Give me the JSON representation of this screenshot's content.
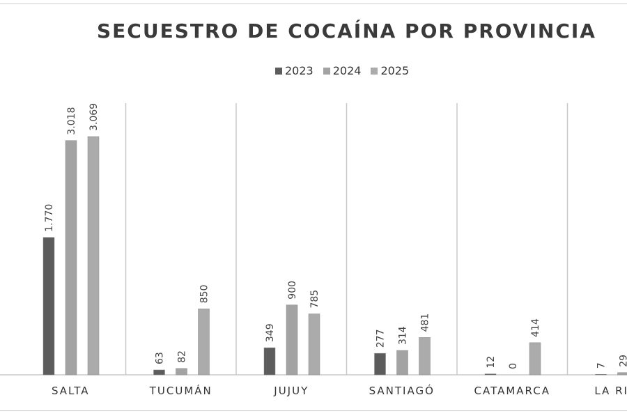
{
  "chart_data": {
    "type": "bar",
    "title": "SECUESTRO DE COCAÍNA POR PROVINCIA",
    "categories": [
      "SALTA",
      "TUCUMÁN",
      "JUJUY",
      "SANTIAGÓ",
      "CATAMARCA",
      "LA RIOJA"
    ],
    "series": [
      {
        "name": "2023",
        "color": "#5c5c5c",
        "values": [
          1770,
          63,
          349,
          277,
          12,
          7
        ]
      },
      {
        "name": "2024",
        "color": "#a3a3a3",
        "values": [
          3018,
          82,
          900,
          314,
          0,
          29
        ]
      },
      {
        "name": "2025",
        "color": "#ababab",
        "values": [
          3069,
          850,
          785,
          481,
          414,
          null
        ]
      }
    ],
    "data_labels": [
      [
        "1.770",
        "63",
        "349",
        "277",
        "12",
        "7"
      ],
      [
        "3.018",
        "82",
        "900",
        "314",
        "0",
        "29"
      ],
      [
        "3.069",
        "850",
        "785",
        "481",
        "414",
        ""
      ]
    ],
    "ylim": [
      0,
      3500
    ],
    "grid": false,
    "category_dividers": true,
    "legend_position": "top"
  }
}
